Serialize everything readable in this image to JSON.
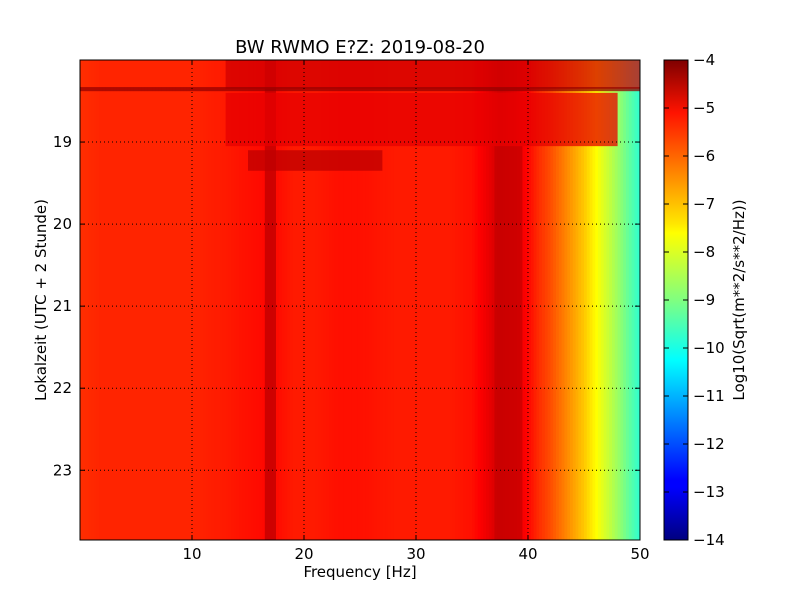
{
  "chart_data": {
    "type": "heatmap",
    "title": "BW RWMO E?Z: 2019-08-20",
    "xlabel": "Frequency [Hz]",
    "ylabel": "Lokalzeit (UTC + 2 Stunde)",
    "colorbar_label": "Log10(Sqrt(m**2/s**2/Hz))",
    "colormap": "jet",
    "xlim": [
      0,
      50
    ],
    "ylim": [
      18.0,
      23.85
    ],
    "y_inverted": true,
    "grid": true,
    "xticks": [
      10,
      20,
      30,
      40,
      50
    ],
    "xtick_labels": [
      "10",
      "20",
      "30",
      "40",
      "50"
    ],
    "yticks": [
      19,
      20,
      21,
      22,
      23
    ],
    "ytick_labels": [
      "19",
      "20",
      "21",
      "22",
      "23"
    ],
    "color_range": [
      -14,
      -4
    ],
    "colorbar_ticks": [
      -4,
      -5,
      -6,
      -7,
      -8,
      -9,
      -10,
      -11,
      -12,
      -13,
      -14
    ],
    "colorbar_tick_labels": [
      "−4",
      "−5",
      "−6",
      "−7",
      "−8",
      "−9",
      "−10",
      "−11",
      "−12",
      "−13",
      "−14"
    ],
    "frequency_profile": {
      "x": [
        0,
        2,
        5,
        8,
        10,
        13,
        15,
        17,
        19,
        21,
        23,
        25,
        28,
        30,
        33,
        35,
        37.5,
        39,
        40,
        41,
        42,
        43,
        44,
        45,
        46,
        47,
        48,
        49,
        50
      ],
      "values": [
        -5.7,
        -5.6,
        -5.6,
        -5.6,
        -5.6,
        -5.5,
        -5.4,
        -5.3,
        -5.5,
        -5.5,
        -5.4,
        -5.4,
        -5.5,
        -5.5,
        -5.5,
        -5.4,
        -4.8,
        -5.0,
        -5.3,
        -5.7,
        -6.0,
        -6.4,
        -6.8,
        -7.2,
        -7.7,
        -8.2,
        -8.7,
        -9.3,
        -9.8
      ]
    },
    "features": [
      {
        "kind": "band",
        "x_from": 16.5,
        "x_to": 17.5,
        "y_from": 18.0,
        "y_to": 23.85,
        "value": -4.6
      },
      {
        "kind": "band",
        "x_from": 13,
        "x_to": 50,
        "y_from": 18.0,
        "y_to": 18.35,
        "value": -4.8
      },
      {
        "kind": "band",
        "x_from": 0,
        "x_to": 50,
        "y_from": 18.33,
        "y_to": 18.38,
        "value": -4.2
      },
      {
        "kind": "band",
        "x_from": 13,
        "x_to": 48,
        "y_from": 18.4,
        "y_to": 19.05,
        "value": -5.0
      },
      {
        "kind": "band",
        "x_from": 15,
        "x_to": 27,
        "y_from": 19.1,
        "y_to": 19.35,
        "value": -4.6
      },
      {
        "kind": "band",
        "x_from": 37,
        "x_to": 39.5,
        "y_from": 19.05,
        "y_to": 23.85,
        "value": -4.7
      }
    ]
  }
}
